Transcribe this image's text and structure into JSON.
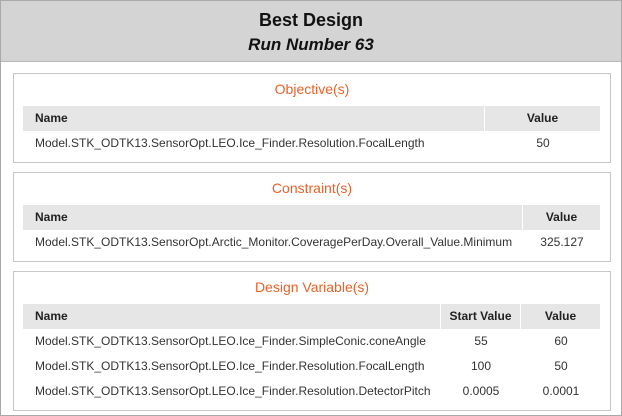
{
  "header": {
    "title": "Best Design",
    "subtitle": "Run Number 63"
  },
  "sections": [
    {
      "title": "Objective(s)",
      "columns": [
        "Name",
        "Value"
      ],
      "rows": [
        [
          "Model.STK_ODTK13.SensorOpt.LEO.Ice_Finder.Resolution.FocalLength",
          "50"
        ]
      ]
    },
    {
      "title": "Constraint(s)",
      "columns": [
        "Name",
        "Value"
      ],
      "rows": [
        [
          "Model.STK_ODTK13.SensorOpt.Arctic_Monitor.CoveragePerDay.Overall_Value.Minimum",
          "325.127"
        ]
      ]
    },
    {
      "title": "Design Variable(s)",
      "columns": [
        "Name",
        "Start Value",
        "Value"
      ],
      "rows": [
        [
          "Model.STK_ODTK13.SensorOpt.LEO.Ice_Finder.SimpleConic.coneAngle",
          "55",
          "60"
        ],
        [
          "Model.STK_ODTK13.SensorOpt.LEO.Ice_Finder.Resolution.FocalLength",
          "100",
          "50"
        ],
        [
          "Model.STK_ODTK13.SensorOpt.LEO.Ice_Finder.Resolution.DetectorPitch",
          "0.0005",
          "0.0001"
        ]
      ]
    }
  ]
}
